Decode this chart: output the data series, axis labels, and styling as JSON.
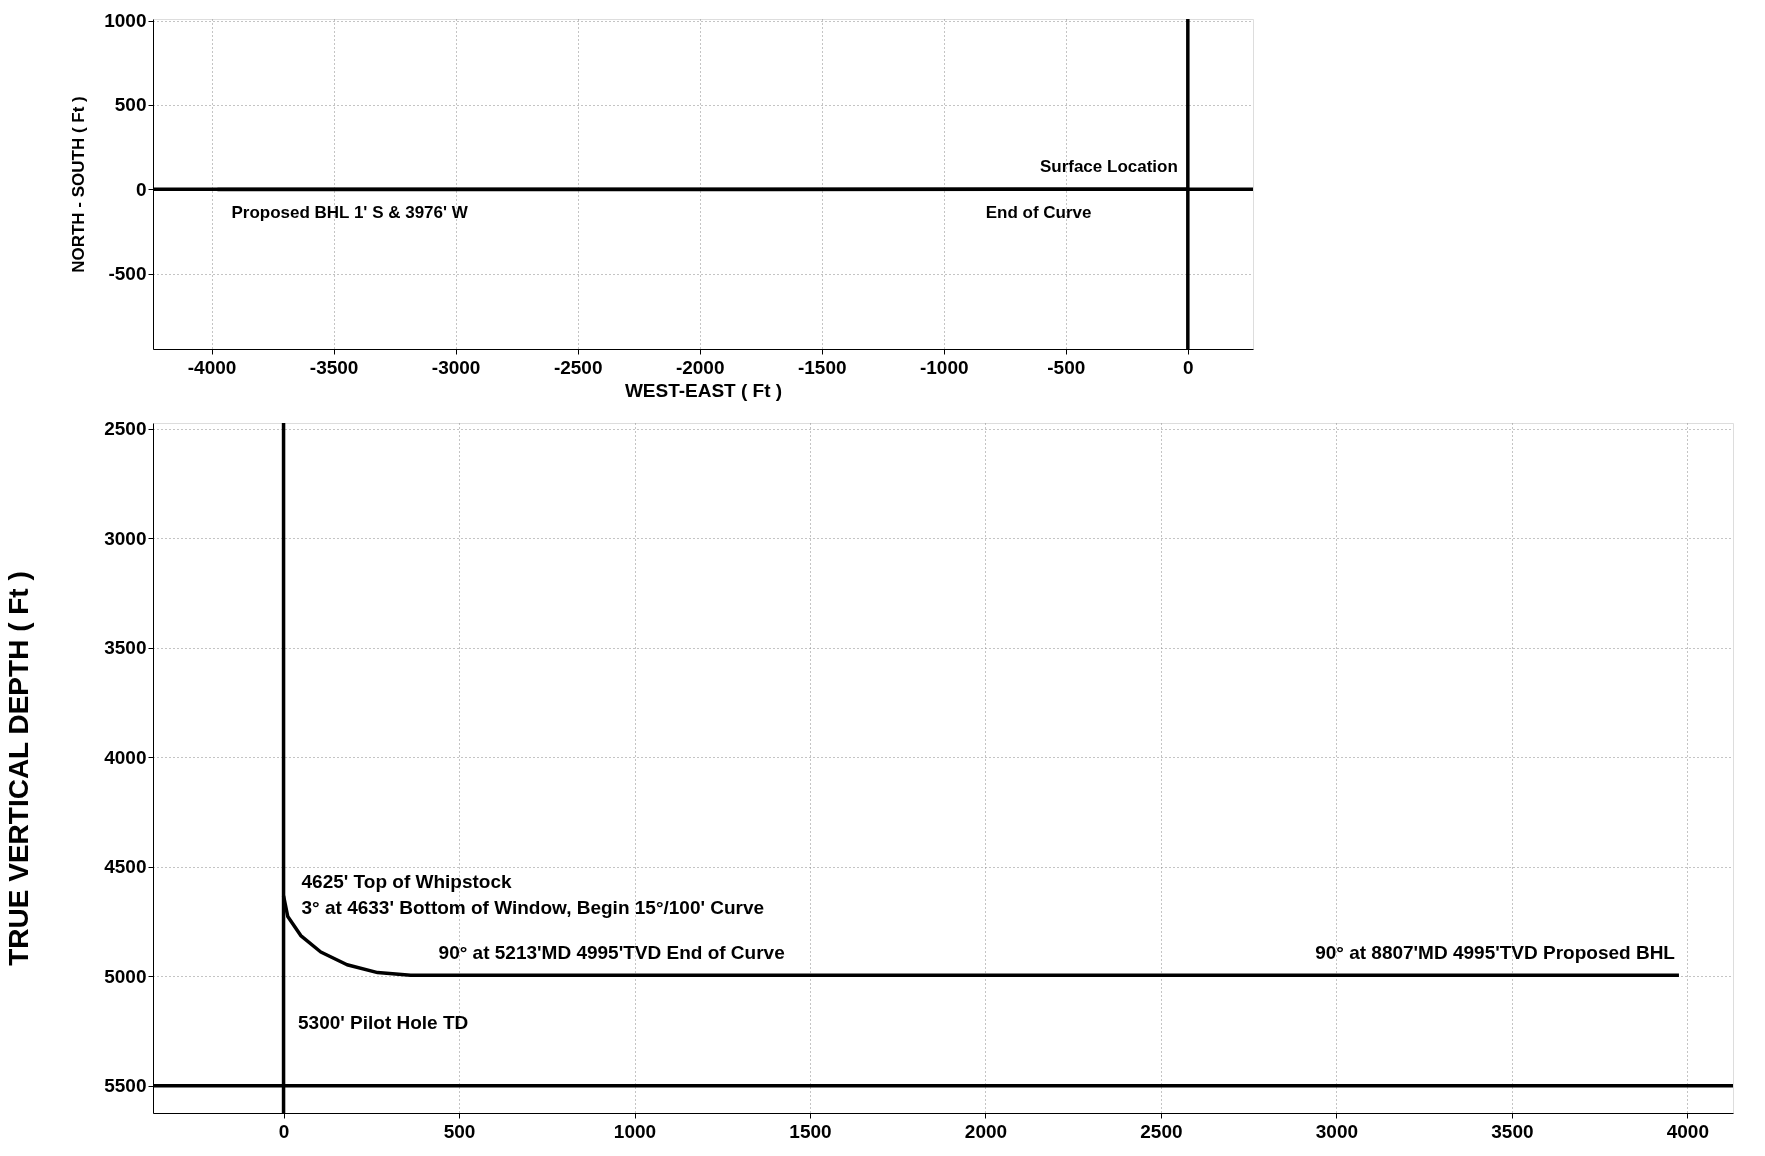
{
  "chart_data": [
    {
      "type": "line",
      "xlabel": "WEST-EAST ( Ft )",
      "ylabel": "NORTH - SOUTH ( Ft )",
      "x": [
        0,
        -362,
        -3976
      ],
      "series": [
        {
          "color": "#000000",
          "values": [
            0,
            0,
            -1
          ]
        },
        {
          "color": "#000000",
          "x": [
            0,
            0
          ],
          "values": [
            -947,
            1010
          ]
        },
        {
          "color": "#000000",
          "x": [
            -4240,
            267
          ],
          "values": [
            0,
            0
          ]
        }
      ],
      "xlim": [
        -4240,
        267
      ],
      "ylim": [
        -947,
        1010
      ],
      "xticks": [
        -4000,
        -3500,
        -3000,
        -2500,
        -2000,
        -1500,
        -1000,
        -500,
        0
      ],
      "yticks": [
        -500,
        0,
        500,
        1000
      ],
      "grid": true,
      "annotations": [
        {
          "text": "Surface Location",
          "x": 0,
          "y": 0
        },
        {
          "text": "End of Curve",
          "x": -362,
          "y": 0
        },
        {
          "text": "Proposed BHL 1' S & 3976' W",
          "x": -3976,
          "y": -1
        }
      ]
    },
    {
      "type": "line",
      "ylabel": "TRUE VERTICAL DEPTH ( Ft )",
      "x": [
        0,
        12,
        49,
        106,
        181,
        268,
        362,
        3976
      ],
      "series": [
        {
          "color": "#000000",
          "values": [
            4633,
            4727,
            4814,
            4889,
            4947,
            4983,
            4995,
            4995
          ]
        },
        {
          "color": "#000000",
          "x": [
            0,
            0
          ],
          "values": [
            2474,
            5624
          ]
        },
        {
          "color": "#000000",
          "x": [
            -372,
            4130
          ],
          "values": [
            5500,
            5500
          ]
        }
      ],
      "xlim": [
        -372,
        4130
      ],
      "ylim": [
        5624,
        2474
      ],
      "xticks": [
        0,
        500,
        1000,
        1500,
        2000,
        2500,
        3000,
        3500,
        4000
      ],
      "yticks": [
        2500,
        3000,
        3500,
        4000,
        4500,
        5000,
        5500
      ],
      "grid": true,
      "annotations": [
        {
          "text": "4625' Top of Whipstock",
          "x": 0,
          "y": 4625
        },
        {
          "text": "3° at 4633' Bottom of Window, Begin 15°/100' Curve",
          "x": 0,
          "y": 4633
        },
        {
          "text": "90° at 5213'MD 4995'TVD End of Curve",
          "x": 362,
          "y": 4995
        },
        {
          "text": "90° at 8807'MD 4995'TVD Proposed BHL",
          "x": 3976,
          "y": 4995
        },
        "5300' Pilot Hole TD"
      ]
    }
  ]
}
